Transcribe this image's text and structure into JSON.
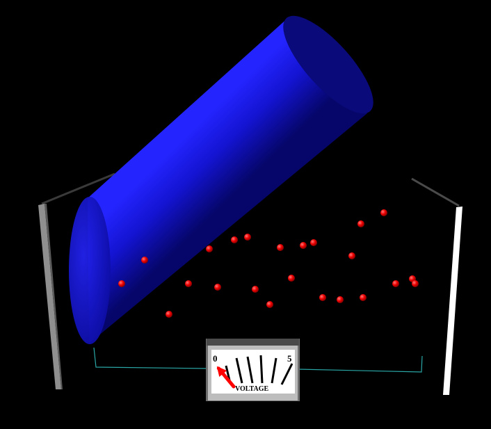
{
  "scene": {
    "background_color": "#000000",
    "cylinder_color": "#1010d8",
    "particle_color": "#ff0000",
    "left_plate_color": "#9a9a9a",
    "right_plate_color": "#ffffff",
    "box_edge_color": "#2aa7a7"
  },
  "meter": {
    "min_label": "0",
    "max_label": "5",
    "title": "VOLTAGE",
    "reading": 0.3,
    "needle_color": "#ff0000",
    "face_color": "#ffffff",
    "casing_color": "#bdbdbd"
  }
}
